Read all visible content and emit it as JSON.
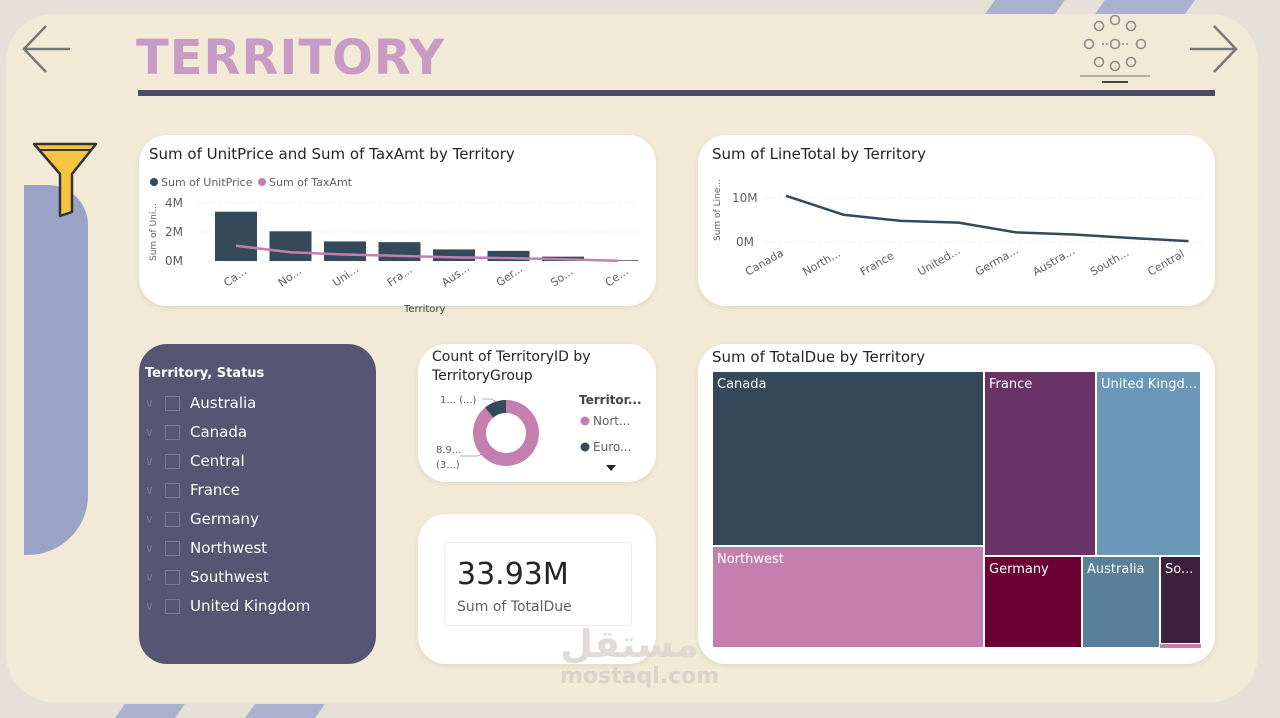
{
  "page": {
    "title": "TERRITORY",
    "watermark": "mostaql.com",
    "watermark_ar": "مستقل"
  },
  "icons": {
    "back": "arrow-left-icon",
    "forward": "arrow-right-icon",
    "filter": "funnel-icon",
    "logo": "map-pins-network-icon"
  },
  "colors": {
    "dark": "#34495a",
    "pink": "#c57fae",
    "title": "#c79bc3",
    "slicer_bg": "#575574"
  },
  "bar_chart": {
    "title": "Sum of UnitPrice and Sum of TaxAmt by Territory",
    "legend": [
      "Sum of UnitPrice",
      "Sum of TaxAmt"
    ],
    "ylabel": "Sum of Uni...",
    "xlabel": "Territory",
    "yticks": [
      "4M",
      "2M",
      "0M"
    ]
  },
  "line_chart": {
    "title": "Sum of LineTotal by Territory",
    "ylabel": "Sum of Line...",
    "yticks": [
      "10M",
      "0M"
    ]
  },
  "donut_chart": {
    "title_line1": "Count of TerritoryID by",
    "title_line2": "TerritoryGroup",
    "legend_title": "Territor...",
    "legend": [
      "Nort...",
      "Euro..."
    ],
    "label_top": "1... (...)",
    "label_bottom_1": "8.9...",
    "label_bottom_2": "(3...)"
  },
  "kpi": {
    "value": "33.93M",
    "label": "Sum of TotalDue"
  },
  "slicer": {
    "title": "Territory, Status",
    "items": [
      "Australia",
      "Canada",
      "Central",
      "France",
      "Germany",
      "Northwest",
      "Southwest",
      "United Kingdom"
    ]
  },
  "treemap": {
    "title": "Sum of TotalDue by Territory",
    "cells": [
      {
        "label": "Canada",
        "color": "#34495a"
      },
      {
        "label": "France",
        "color": "#6a3368"
      },
      {
        "label": "United Kingd...",
        "color": "#6b97b8"
      },
      {
        "label": "Northwest",
        "color": "#c57fae"
      },
      {
        "label": "Germany",
        "color": "#6b0035"
      },
      {
        "label": "Australia",
        "color": "#5a7f99"
      },
      {
        "label": "So...",
        "color": "#3e1f3e"
      }
    ]
  },
  "chart_data": [
    {
      "type": "bar",
      "title": "Sum of UnitPrice and Sum of TaxAmt by Territory",
      "categories": [
        "Ca...",
        "No...",
        "Uni...",
        "Fra...",
        "Aus...",
        "Ger...",
        "So...",
        "Ce..."
      ],
      "ylim": [
        0,
        4.5
      ],
      "yunit": "M",
      "xlabel": "Territory",
      "ylabel": "Sum of Uni...",
      "series": [
        {
          "name": "Sum of UnitPrice",
          "kind": "bar",
          "color": "#34495a",
          "values": [
            3.4,
            2.05,
            1.35,
            1.3,
            0.8,
            0.7,
            0.3,
            0.05
          ]
        },
        {
          "name": "Sum of TaxAmt",
          "kind": "line",
          "color": "#c57fae",
          "values": [
            1.05,
            0.6,
            0.45,
            0.35,
            0.25,
            0.2,
            0.12,
            0.02
          ]
        }
      ],
      "grid": true,
      "legend": "top-left"
    },
    {
      "type": "line",
      "title": "Sum of LineTotal by Territory",
      "categories": [
        "Canada",
        "North...",
        "France",
        "United...",
        "Germa...",
        "Austra...",
        "South...",
        "Central"
      ],
      "ylim": [
        0,
        12
      ],
      "yunit": "M",
      "ylabel": "Sum of Line...",
      "series": [
        {
          "name": "Sum of LineTotal",
          "color": "#34495a",
          "values": [
            10.5,
            6.2,
            4.8,
            4.4,
            2.2,
            1.7,
            0.9,
            0.2
          ]
        }
      ],
      "grid": true
    },
    {
      "type": "pie",
      "title": "Count of TerritoryID by TerritoryGroup",
      "categories": [
        "Nort...",
        "Euro..."
      ],
      "values": [
        89,
        11
      ],
      "colors": [
        "#c57fae",
        "#34495a"
      ],
      "donut": true
    }
  ]
}
